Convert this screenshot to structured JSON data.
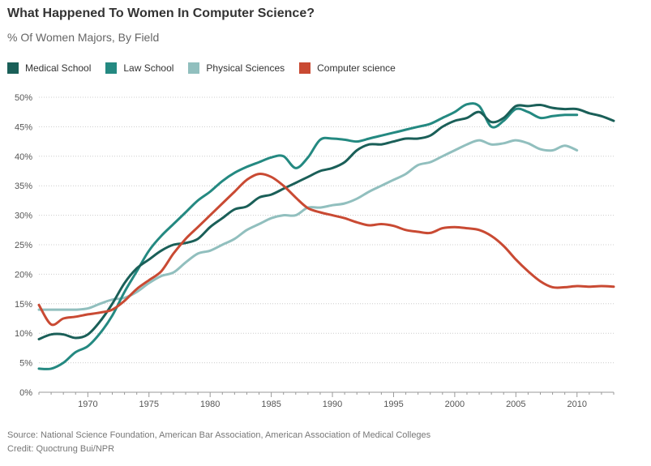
{
  "title": "What Happened To Women In Computer Science?",
  "subtitle": "% Of Women Majors, By Field",
  "source": "Source: National Science Foundation, American Bar Association, American Association of Medical Colleges",
  "credit": "Credit: Quoctrung Bui/NPR",
  "chart_data": {
    "type": "line",
    "title": "What Happened To Women In Computer Science?",
    "subtitle": "% Of Women Majors, By Field",
    "xlabel": "",
    "ylabel": "",
    "xlim": [
      1966,
      2013
    ],
    "ylim": [
      0,
      50
    ],
    "x_ticks": [
      1970,
      1975,
      1980,
      1985,
      1990,
      1995,
      2000,
      2005,
      2010
    ],
    "y_ticks": [
      0,
      5,
      10,
      15,
      20,
      25,
      30,
      35,
      40,
      45,
      50
    ],
    "y_tick_labels": [
      "0%",
      "5%",
      "10%",
      "15%",
      "20%",
      "25%",
      "30%",
      "35%",
      "40%",
      "45%",
      "50%"
    ],
    "grid": "horizontal dotted",
    "legend_position": "top-left",
    "series": [
      {
        "name": "Medical School",
        "color": "#1a5f58",
        "points": [
          [
            1966,
            9
          ],
          [
            1967,
            9.8
          ],
          [
            1968,
            9.8
          ],
          [
            1969,
            9.2
          ],
          [
            1970,
            9.8
          ],
          [
            1971,
            12
          ],
          [
            1972,
            15
          ],
          [
            1973,
            18.5
          ],
          [
            1974,
            21
          ],
          [
            1975,
            22.5
          ],
          [
            1976,
            24
          ],
          [
            1977,
            25
          ],
          [
            1978,
            25.3
          ],
          [
            1979,
            26
          ],
          [
            1980,
            28
          ],
          [
            1981,
            29.5
          ],
          [
            1982,
            31
          ],
          [
            1983,
            31.5
          ],
          [
            1984,
            33
          ],
          [
            1985,
            33.5
          ],
          [
            1986,
            34.5
          ],
          [
            1987,
            35.5
          ],
          [
            1988,
            36.5
          ],
          [
            1989,
            37.5
          ],
          [
            1990,
            38
          ],
          [
            1991,
            39
          ],
          [
            1992,
            41
          ],
          [
            1993,
            42
          ],
          [
            1994,
            42
          ],
          [
            1995,
            42.5
          ],
          [
            1996,
            43
          ],
          [
            1997,
            43
          ],
          [
            1998,
            43.5
          ],
          [
            1999,
            45
          ],
          [
            2000,
            46
          ],
          [
            2001,
            46.5
          ],
          [
            2002,
            47.5
          ],
          [
            2003,
            45.8
          ],
          [
            2004,
            46.5
          ],
          [
            2005,
            48.5
          ],
          [
            2006,
            48.5
          ],
          [
            2007,
            48.7
          ],
          [
            2008,
            48.2
          ],
          [
            2009,
            48
          ],
          [
            2010,
            48
          ],
          [
            2011,
            47.3
          ],
          [
            2012,
            46.8
          ],
          [
            2013,
            46
          ]
        ]
      },
      {
        "name": "Law School",
        "color": "#248981",
        "points": [
          [
            1966,
            4
          ],
          [
            1967,
            4
          ],
          [
            1968,
            5
          ],
          [
            1969,
            6.8
          ],
          [
            1970,
            7.8
          ],
          [
            1971,
            10
          ],
          [
            1972,
            13
          ],
          [
            1973,
            17
          ],
          [
            1974,
            20.5
          ],
          [
            1975,
            24
          ],
          [
            1976,
            26.5
          ],
          [
            1977,
            28.5
          ],
          [
            1978,
            30.5
          ],
          [
            1979,
            32.5
          ],
          [
            1980,
            34
          ],
          [
            1981,
            35.8
          ],
          [
            1982,
            37.2
          ],
          [
            1983,
            38.2
          ],
          [
            1984,
            39
          ],
          [
            1985,
            39.8
          ],
          [
            1986,
            40
          ],
          [
            1987,
            38
          ],
          [
            1988,
            39.8
          ],
          [
            1989,
            42.8
          ],
          [
            1990,
            43
          ],
          [
            1991,
            42.8
          ],
          [
            1992,
            42.5
          ],
          [
            1993,
            43
          ],
          [
            1994,
            43.5
          ],
          [
            1995,
            44
          ],
          [
            1996,
            44.5
          ],
          [
            1997,
            45
          ],
          [
            1998,
            45.5
          ],
          [
            1999,
            46.5
          ],
          [
            2000,
            47.5
          ],
          [
            2001,
            48.8
          ],
          [
            2002,
            48.5
          ],
          [
            2003,
            45
          ],
          [
            2004,
            46
          ],
          [
            2005,
            48
          ],
          [
            2006,
            47.5
          ],
          [
            2007,
            46.5
          ],
          [
            2008,
            46.8
          ],
          [
            2009,
            47
          ],
          [
            2010,
            47
          ]
        ]
      },
      {
        "name": "Physical Sciences",
        "color": "#91bfbe",
        "points": [
          [
            1966,
            14
          ],
          [
            1967,
            14
          ],
          [
            1968,
            14
          ],
          [
            1969,
            14
          ],
          [
            1970,
            14.2
          ],
          [
            1971,
            15
          ],
          [
            1972,
            15.7
          ],
          [
            1973,
            16
          ],
          [
            1974,
            17
          ],
          [
            1975,
            18.5
          ],
          [
            1976,
            19.7
          ],
          [
            1977,
            20.3
          ],
          [
            1978,
            22
          ],
          [
            1979,
            23.5
          ],
          [
            1980,
            24
          ],
          [
            1981,
            25
          ],
          [
            1982,
            26
          ],
          [
            1983,
            27.5
          ],
          [
            1984,
            28.5
          ],
          [
            1985,
            29.5
          ],
          [
            1986,
            30
          ],
          [
            1987,
            30
          ],
          [
            1988,
            31.3
          ],
          [
            1989,
            31.3
          ],
          [
            1990,
            31.7
          ],
          [
            1991,
            32
          ],
          [
            1992,
            32.8
          ],
          [
            1993,
            34
          ],
          [
            1994,
            35
          ],
          [
            1995,
            36
          ],
          [
            1996,
            37
          ],
          [
            1997,
            38.5
          ],
          [
            1998,
            39
          ],
          [
            1999,
            40
          ],
          [
            2000,
            41
          ],
          [
            2001,
            42
          ],
          [
            2002,
            42.7
          ],
          [
            2003,
            42
          ],
          [
            2004,
            42.2
          ],
          [
            2005,
            42.7
          ],
          [
            2006,
            42.2
          ],
          [
            2007,
            41.2
          ],
          [
            2008,
            41
          ],
          [
            2009,
            41.8
          ],
          [
            2010,
            41
          ]
        ]
      },
      {
        "name": "Computer science",
        "color": "#c94a33",
        "points": [
          [
            1966,
            14.8
          ],
          [
            1967,
            11.5
          ],
          [
            1968,
            12.5
          ],
          [
            1969,
            12.8
          ],
          [
            1970,
            13.2
          ],
          [
            1971,
            13.5
          ],
          [
            1972,
            14
          ],
          [
            1973,
            15.5
          ],
          [
            1974,
            17.5
          ],
          [
            1975,
            19
          ],
          [
            1976,
            20.5
          ],
          [
            1977,
            23.5
          ],
          [
            1978,
            26
          ],
          [
            1979,
            28
          ],
          [
            1980,
            30
          ],
          [
            1981,
            32
          ],
          [
            1982,
            34
          ],
          [
            1983,
            36
          ],
          [
            1984,
            37
          ],
          [
            1985,
            36.5
          ],
          [
            1986,
            35
          ],
          [
            1987,
            33
          ],
          [
            1988,
            31.2
          ],
          [
            1989,
            30.5
          ],
          [
            1990,
            30
          ],
          [
            1991,
            29.5
          ],
          [
            1992,
            28.8
          ],
          [
            1993,
            28.3
          ],
          [
            1994,
            28.5
          ],
          [
            1995,
            28.2
          ],
          [
            1996,
            27.5
          ],
          [
            1997,
            27.2
          ],
          [
            1998,
            27
          ],
          [
            1999,
            27.8
          ],
          [
            2000,
            28
          ],
          [
            2001,
            27.8
          ],
          [
            2002,
            27.5
          ],
          [
            2003,
            26.5
          ],
          [
            2004,
            24.8
          ],
          [
            2005,
            22.5
          ],
          [
            2006,
            20.5
          ],
          [
            2007,
            18.8
          ],
          [
            2008,
            17.8
          ],
          [
            2009,
            17.8
          ],
          [
            2010,
            18
          ],
          [
            2011,
            17.9
          ],
          [
            2012,
            18
          ],
          [
            2013,
            17.9
          ]
        ]
      }
    ]
  }
}
